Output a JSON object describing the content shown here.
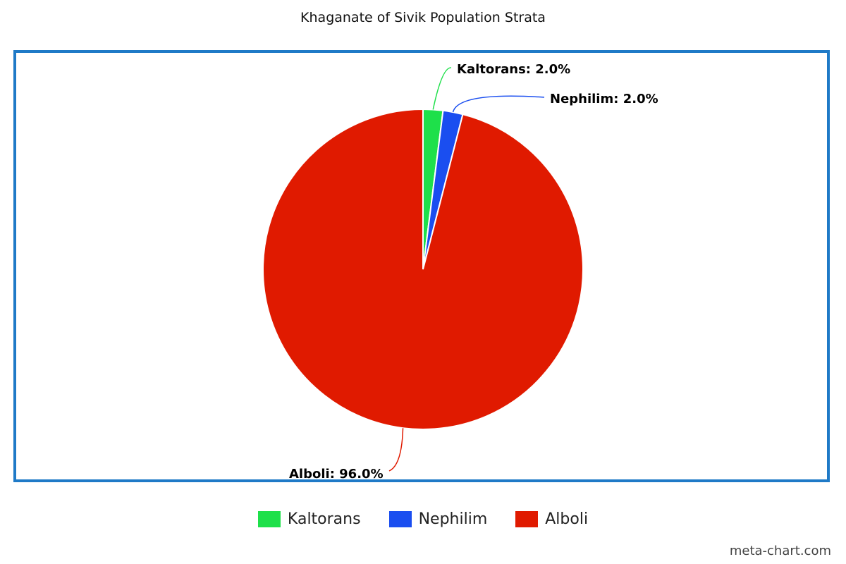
{
  "chart_data": {
    "type": "pie",
    "title": "Khaganate of Sivik Population Strata",
    "slices": [
      {
        "name": "Kaltorans",
        "value": 2.0,
        "label": "Kaltorans: 2.0%",
        "color": "#1ee04a"
      },
      {
        "name": "Nephilim",
        "value": 2.0,
        "label": "Nephilim: 2.0%",
        "color": "#1a4ef0"
      },
      {
        "name": "Alboli",
        "value": 96.0,
        "label": "Alboli: 96.0%",
        "color": "#e01a00"
      }
    ],
    "legend_position": "bottom"
  },
  "frame_color": "#1f7ac7",
  "watermark": "meta-chart.com"
}
